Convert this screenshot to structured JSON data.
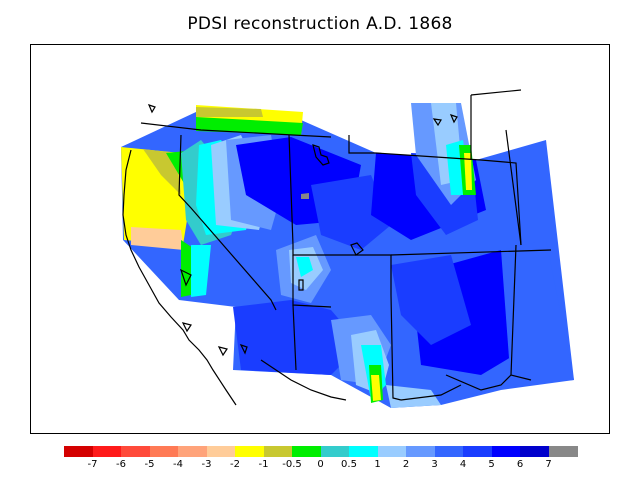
{
  "title": "PDSI reconstruction A.D. 1868",
  "colorbar": {
    "colors": [
      "#d40000",
      "#ff1a1a",
      "#ff4a3a",
      "#ff7a55",
      "#ffa37a",
      "#ffcc99",
      "#ffff00",
      "#c8c830",
      "#00ee00",
      "#33cccc",
      "#00ffff",
      "#99ccff",
      "#6699ff",
      "#3366ff",
      "#1a3dff",
      "#0000ff",
      "#0000cc",
      "#888888"
    ],
    "labels": [
      "-7",
      "-6",
      "-5",
      "-4",
      "-3",
      "-2",
      "-1",
      "-0.5",
      "0",
      "0.5",
      "1",
      "2",
      "3",
      "4",
      "5",
      "6",
      "7"
    ]
  },
  "palette": {
    "yellow": "#ffff00",
    "olive": "#c8c830",
    "green": "#00ee00",
    "peach": "#ffcc99",
    "teal": "#33cccc",
    "cyan": "#00ffff",
    "light_blue": "#99ccff",
    "mid_blue": "#6699ff",
    "blue": "#3366ff",
    "royal": "#1a3dff",
    "pure_blue": "#0000ff",
    "dark_blue": "#0000cc",
    "grey": "#888888"
  }
}
